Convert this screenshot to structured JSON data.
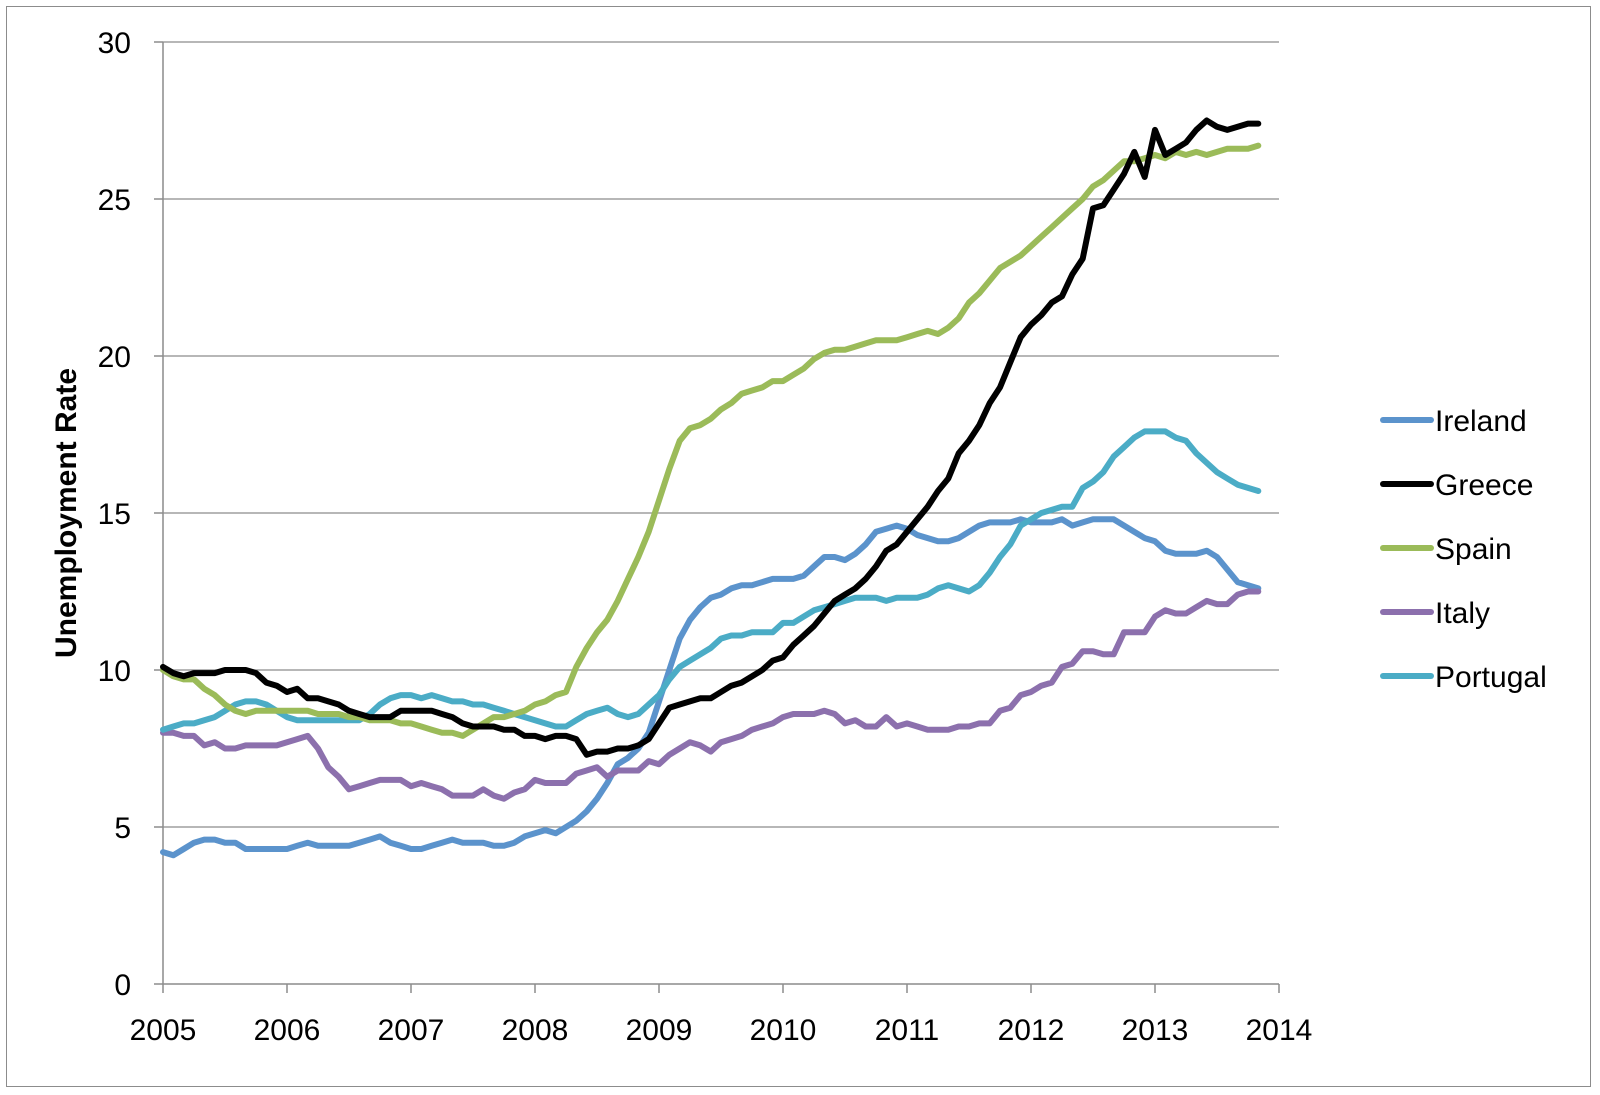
{
  "chart_data": {
    "type": "line",
    "title": "",
    "xlabel": "",
    "ylabel": "Unemployment Rate",
    "xlim": [
      2005,
      2014
    ],
    "ylim": [
      0,
      30
    ],
    "xticks": [
      "2005",
      "2006",
      "2007",
      "2008",
      "2009",
      "2010",
      "2011",
      "2012",
      "2013",
      "2014"
    ],
    "yticks": [
      "0",
      "5",
      "10",
      "15",
      "20",
      "25",
      "30"
    ],
    "grid": "horizontal",
    "legend_position": "right",
    "series": [
      {
        "name": "Ireland",
        "color": "#5b93cc",
        "x": [
          2005.0,
          2005.083,
          2005.167,
          2005.25,
          2005.333,
          2005.417,
          2005.5,
          2005.583,
          2005.667,
          2005.75,
          2005.833,
          2005.917,
          2006.0,
          2006.083,
          2006.167,
          2006.25,
          2006.333,
          2006.417,
          2006.5,
          2006.583,
          2006.667,
          2006.75,
          2006.833,
          2006.917,
          2007.0,
          2007.083,
          2007.167,
          2007.25,
          2007.333,
          2007.417,
          2007.5,
          2007.583,
          2007.667,
          2007.75,
          2007.833,
          2007.917,
          2008.0,
          2008.083,
          2008.167,
          2008.25,
          2008.333,
          2008.417,
          2008.5,
          2008.583,
          2008.667,
          2008.75,
          2008.833,
          2008.917,
          2009.0,
          2009.083,
          2009.167,
          2009.25,
          2009.333,
          2009.417,
          2009.5,
          2009.583,
          2009.667,
          2009.75,
          2009.833,
          2009.917,
          2010.0,
          2010.083,
          2010.167,
          2010.25,
          2010.333,
          2010.417,
          2010.5,
          2010.583,
          2010.667,
          2010.75,
          2010.833,
          2010.917,
          2011.0,
          2011.083,
          2011.167,
          2011.25,
          2011.333,
          2011.417,
          2011.5,
          2011.583,
          2011.667,
          2011.75,
          2011.833,
          2011.917,
          2012.0,
          2012.083,
          2012.167,
          2012.25,
          2012.333,
          2012.417,
          2012.5,
          2012.583,
          2012.667,
          2012.75,
          2012.833,
          2012.917,
          2013.0,
          2013.083,
          2013.167,
          2013.25,
          2013.333,
          2013.417,
          2013.5,
          2013.583,
          2013.667,
          2013.75,
          2013.833
        ],
        "y": [
          4.2,
          4.1,
          4.3,
          4.5,
          4.6,
          4.6,
          4.5,
          4.5,
          4.3,
          4.3,
          4.3,
          4.3,
          4.3,
          4.4,
          4.5,
          4.4,
          4.4,
          4.4,
          4.4,
          4.5,
          4.6,
          4.7,
          4.5,
          4.4,
          4.3,
          4.3,
          4.4,
          4.5,
          4.6,
          4.5,
          4.5,
          4.5,
          4.4,
          4.4,
          4.5,
          4.7,
          4.8,
          4.9,
          4.8,
          5.0,
          5.2,
          5.5,
          5.9,
          6.4,
          7.0,
          7.2,
          7.5,
          8.0,
          9.0,
          10.0,
          11.0,
          11.6,
          12.0,
          12.3,
          12.4,
          12.6,
          12.7,
          12.7,
          12.8,
          12.9,
          12.9,
          12.9,
          13.0,
          13.3,
          13.6,
          13.6,
          13.5,
          13.7,
          14.0,
          14.4,
          14.5,
          14.6,
          14.5,
          14.3,
          14.2,
          14.1,
          14.1,
          14.2,
          14.4,
          14.6,
          14.7,
          14.7,
          14.7,
          14.8,
          14.7,
          14.7,
          14.7,
          14.8,
          14.6,
          14.7,
          14.8,
          14.8,
          14.8,
          14.6,
          14.4,
          14.2,
          14.1,
          13.8,
          13.7,
          13.7,
          13.7,
          13.8,
          13.6,
          13.2,
          12.8,
          12.7,
          12.6
        ]
      },
      {
        "name": "Greece",
        "color": "#000000",
        "x": [
          2005.0,
          2005.083,
          2005.167,
          2005.25,
          2005.333,
          2005.417,
          2005.5,
          2005.583,
          2005.667,
          2005.75,
          2005.833,
          2005.917,
          2006.0,
          2006.083,
          2006.167,
          2006.25,
          2006.333,
          2006.417,
          2006.5,
          2006.583,
          2006.667,
          2006.75,
          2006.833,
          2006.917,
          2007.0,
          2007.083,
          2007.167,
          2007.25,
          2007.333,
          2007.417,
          2007.5,
          2007.583,
          2007.667,
          2007.75,
          2007.833,
          2007.917,
          2008.0,
          2008.083,
          2008.167,
          2008.25,
          2008.333,
          2008.417,
          2008.5,
          2008.583,
          2008.667,
          2008.75,
          2008.833,
          2008.917,
          2009.0,
          2009.083,
          2009.167,
          2009.25,
          2009.333,
          2009.417,
          2009.5,
          2009.583,
          2009.667,
          2009.75,
          2009.833,
          2009.917,
          2010.0,
          2010.083,
          2010.167,
          2010.25,
          2010.333,
          2010.417,
          2010.5,
          2010.583,
          2010.667,
          2010.75,
          2010.833,
          2010.917,
          2011.0,
          2011.083,
          2011.167,
          2011.25,
          2011.333,
          2011.417,
          2011.5,
          2011.583,
          2011.667,
          2011.75,
          2011.833,
          2011.917,
          2012.0,
          2012.083,
          2012.167,
          2012.25,
          2012.333,
          2012.417,
          2012.5,
          2012.583,
          2012.667,
          2012.75,
          2012.833,
          2012.917,
          2013.0,
          2013.083,
          2013.167,
          2013.25,
          2013.333,
          2013.417,
          2013.5,
          2013.583,
          2013.667,
          2013.75,
          2013.833
        ],
        "y": [
          10.1,
          9.9,
          9.8,
          9.9,
          9.9,
          9.9,
          10.0,
          10.0,
          10.0,
          9.9,
          9.6,
          9.5,
          9.3,
          9.4,
          9.1,
          9.1,
          9.0,
          8.9,
          8.7,
          8.6,
          8.5,
          8.5,
          8.5,
          8.7,
          8.7,
          8.7,
          8.7,
          8.6,
          8.5,
          8.3,
          8.2,
          8.2,
          8.2,
          8.1,
          8.1,
          7.9,
          7.9,
          7.8,
          7.9,
          7.9,
          7.8,
          7.3,
          7.4,
          7.4,
          7.5,
          7.5,
          7.6,
          7.8,
          8.3,
          8.8,
          8.9,
          9.0,
          9.1,
          9.1,
          9.3,
          9.5,
          9.6,
          9.8,
          10.0,
          10.3,
          10.4,
          10.8,
          11.1,
          11.4,
          11.8,
          12.2,
          12.4,
          12.6,
          12.9,
          13.3,
          13.8,
          14.0,
          14.4,
          14.8,
          15.2,
          15.7,
          16.1,
          16.9,
          17.3,
          17.8,
          18.5,
          19.0,
          19.8,
          20.6,
          21.0,
          21.3,
          21.7,
          21.9,
          22.6,
          23.1,
          24.7,
          24.8,
          25.3,
          25.8,
          26.5,
          25.7,
          27.2,
          26.4,
          26.6,
          26.8,
          27.2,
          27.5,
          27.3,
          27.2,
          27.3,
          27.4,
          27.4
        ]
      },
      {
        "name": "Spain",
        "color": "#9bbb59",
        "x": [
          2005.0,
          2005.083,
          2005.167,
          2005.25,
          2005.333,
          2005.417,
          2005.5,
          2005.583,
          2005.667,
          2005.75,
          2005.833,
          2005.917,
          2006.0,
          2006.083,
          2006.167,
          2006.25,
          2006.333,
          2006.417,
          2006.5,
          2006.583,
          2006.667,
          2006.75,
          2006.833,
          2006.917,
          2007.0,
          2007.083,
          2007.167,
          2007.25,
          2007.333,
          2007.417,
          2007.5,
          2007.583,
          2007.667,
          2007.75,
          2007.833,
          2007.917,
          2008.0,
          2008.083,
          2008.167,
          2008.25,
          2008.333,
          2008.417,
          2008.5,
          2008.583,
          2008.667,
          2008.75,
          2008.833,
          2008.917,
          2009.0,
          2009.083,
          2009.167,
          2009.25,
          2009.333,
          2009.417,
          2009.5,
          2009.583,
          2009.667,
          2009.75,
          2009.833,
          2009.917,
          2010.0,
          2010.083,
          2010.167,
          2010.25,
          2010.333,
          2010.417,
          2010.5,
          2010.583,
          2010.667,
          2010.75,
          2010.833,
          2010.917,
          2011.0,
          2011.083,
          2011.167,
          2011.25,
          2011.333,
          2011.417,
          2011.5,
          2011.583,
          2011.667,
          2011.75,
          2011.833,
          2011.917,
          2012.0,
          2012.083,
          2012.167,
          2012.25,
          2012.333,
          2012.417,
          2012.5,
          2012.583,
          2012.667,
          2012.75,
          2012.833,
          2012.917,
          2013.0,
          2013.083,
          2013.167,
          2013.25,
          2013.333,
          2013.417,
          2013.5,
          2013.583,
          2013.667,
          2013.75,
          2013.833
        ],
        "y": [
          10.0,
          9.8,
          9.7,
          9.7,
          9.4,
          9.2,
          8.9,
          8.7,
          8.6,
          8.7,
          8.7,
          8.7,
          8.7,
          8.7,
          8.7,
          8.6,
          8.6,
          8.6,
          8.5,
          8.5,
          8.4,
          8.4,
          8.4,
          8.3,
          8.3,
          8.2,
          8.1,
          8.0,
          8.0,
          7.9,
          8.1,
          8.3,
          8.5,
          8.5,
          8.6,
          8.7,
          8.9,
          9.0,
          9.2,
          9.3,
          10.1,
          10.7,
          11.2,
          11.6,
          12.2,
          12.9,
          13.6,
          14.4,
          15.4,
          16.4,
          17.3,
          17.7,
          17.8,
          18.0,
          18.3,
          18.5,
          18.8,
          18.9,
          19.0,
          19.2,
          19.2,
          19.4,
          19.6,
          19.9,
          20.1,
          20.2,
          20.2,
          20.3,
          20.4,
          20.5,
          20.5,
          20.5,
          20.6,
          20.7,
          20.8,
          20.7,
          20.9,
          21.2,
          21.7,
          22.0,
          22.4,
          22.8,
          23.0,
          23.2,
          23.5,
          23.8,
          24.1,
          24.4,
          24.7,
          25.0,
          25.4,
          25.6,
          25.9,
          26.2,
          26.2,
          26.3,
          26.4,
          26.3,
          26.5,
          26.4,
          26.5,
          26.4,
          26.5,
          26.6,
          26.6,
          26.6,
          26.7
        ]
      },
      {
        "name": "Italy",
        "color": "#8c70ad",
        "x": [
          2005.0,
          2005.083,
          2005.167,
          2005.25,
          2005.333,
          2005.417,
          2005.5,
          2005.583,
          2005.667,
          2005.75,
          2005.833,
          2005.917,
          2006.0,
          2006.083,
          2006.167,
          2006.25,
          2006.333,
          2006.417,
          2006.5,
          2006.583,
          2006.667,
          2006.75,
          2006.833,
          2006.917,
          2007.0,
          2007.083,
          2007.167,
          2007.25,
          2007.333,
          2007.417,
          2007.5,
          2007.583,
          2007.667,
          2007.75,
          2007.833,
          2007.917,
          2008.0,
          2008.083,
          2008.167,
          2008.25,
          2008.333,
          2008.417,
          2008.5,
          2008.583,
          2008.667,
          2008.75,
          2008.833,
          2008.917,
          2009.0,
          2009.083,
          2009.167,
          2009.25,
          2009.333,
          2009.417,
          2009.5,
          2009.583,
          2009.667,
          2009.75,
          2009.833,
          2009.917,
          2010.0,
          2010.083,
          2010.167,
          2010.25,
          2010.333,
          2010.417,
          2010.5,
          2010.583,
          2010.667,
          2010.75,
          2010.833,
          2010.917,
          2011.0,
          2011.083,
          2011.167,
          2011.25,
          2011.333,
          2011.417,
          2011.5,
          2011.583,
          2011.667,
          2011.75,
          2011.833,
          2011.917,
          2012.0,
          2012.083,
          2012.167,
          2012.25,
          2012.333,
          2012.417,
          2012.5,
          2012.583,
          2012.667,
          2012.75,
          2012.833,
          2012.917,
          2013.0,
          2013.083,
          2013.167,
          2013.25,
          2013.333,
          2013.417,
          2013.5,
          2013.583,
          2013.667,
          2013.75,
          2013.833
        ],
        "y": [
          8.0,
          8.0,
          7.9,
          7.9,
          7.6,
          7.7,
          7.5,
          7.5,
          7.6,
          7.6,
          7.6,
          7.6,
          7.7,
          7.8,
          7.9,
          7.5,
          6.9,
          6.6,
          6.2,
          6.3,
          6.4,
          6.5,
          6.5,
          6.5,
          6.3,
          6.4,
          6.3,
          6.2,
          6.0,
          6.0,
          6.0,
          6.2,
          6.0,
          5.9,
          6.1,
          6.2,
          6.5,
          6.4,
          6.4,
          6.4,
          6.7,
          6.8,
          6.9,
          6.6,
          6.8,
          6.8,
          6.8,
          7.1,
          7.0,
          7.3,
          7.5,
          7.7,
          7.6,
          7.4,
          7.7,
          7.8,
          7.9,
          8.1,
          8.2,
          8.3,
          8.5,
          8.6,
          8.6,
          8.6,
          8.7,
          8.6,
          8.3,
          8.4,
          8.2,
          8.2,
          8.5,
          8.2,
          8.3,
          8.2,
          8.1,
          8.1,
          8.1,
          8.2,
          8.2,
          8.3,
          8.3,
          8.7,
          8.8,
          9.2,
          9.3,
          9.5,
          9.6,
          10.1,
          10.2,
          10.6,
          10.6,
          10.5,
          10.5,
          11.2,
          11.2,
          11.2,
          11.7,
          11.9,
          11.8,
          11.8,
          12.0,
          12.2,
          12.1,
          12.1,
          12.4,
          12.5,
          12.5
        ]
      },
      {
        "name": "Portugal",
        "color": "#4bacc6",
        "x": [
          2005.0,
          2005.083,
          2005.167,
          2005.25,
          2005.333,
          2005.417,
          2005.5,
          2005.583,
          2005.667,
          2005.75,
          2005.833,
          2005.917,
          2006.0,
          2006.083,
          2006.167,
          2006.25,
          2006.333,
          2006.417,
          2006.5,
          2006.583,
          2006.667,
          2006.75,
          2006.833,
          2006.917,
          2007.0,
          2007.083,
          2007.167,
          2007.25,
          2007.333,
          2007.417,
          2007.5,
          2007.583,
          2007.667,
          2007.75,
          2007.833,
          2007.917,
          2008.0,
          2008.083,
          2008.167,
          2008.25,
          2008.333,
          2008.417,
          2008.5,
          2008.583,
          2008.667,
          2008.75,
          2008.833,
          2008.917,
          2009.0,
          2009.083,
          2009.167,
          2009.25,
          2009.333,
          2009.417,
          2009.5,
          2009.583,
          2009.667,
          2009.75,
          2009.833,
          2009.917,
          2010.0,
          2010.083,
          2010.167,
          2010.25,
          2010.333,
          2010.417,
          2010.5,
          2010.583,
          2010.667,
          2010.75,
          2010.833,
          2010.917,
          2011.0,
          2011.083,
          2011.167,
          2011.25,
          2011.333,
          2011.417,
          2011.5,
          2011.583,
          2011.667,
          2011.75,
          2011.833,
          2011.917,
          2012.0,
          2012.083,
          2012.167,
          2012.25,
          2012.333,
          2012.417,
          2012.5,
          2012.583,
          2012.667,
          2012.75,
          2012.833,
          2012.917,
          2013.0,
          2013.083,
          2013.167,
          2013.25,
          2013.333,
          2013.417,
          2013.5,
          2013.583,
          2013.667,
          2013.75,
          2013.833
        ],
        "y": [
          8.1,
          8.2,
          8.3,
          8.3,
          8.4,
          8.5,
          8.7,
          8.9,
          9.0,
          9.0,
          8.9,
          8.7,
          8.5,
          8.4,
          8.4,
          8.4,
          8.4,
          8.4,
          8.4,
          8.4,
          8.6,
          8.9,
          9.1,
          9.2,
          9.2,
          9.1,
          9.2,
          9.1,
          9.0,
          9.0,
          8.9,
          8.9,
          8.8,
          8.7,
          8.6,
          8.5,
          8.4,
          8.3,
          8.2,
          8.2,
          8.4,
          8.6,
          8.7,
          8.8,
          8.6,
          8.5,
          8.6,
          8.9,
          9.2,
          9.7,
          10.1,
          10.3,
          10.5,
          10.7,
          11.0,
          11.1,
          11.1,
          11.2,
          11.2,
          11.2,
          11.5,
          11.5,
          11.7,
          11.9,
          12.0,
          12.1,
          12.2,
          12.3,
          12.3,
          12.3,
          12.2,
          12.3,
          12.3,
          12.3,
          12.4,
          12.6,
          12.7,
          12.6,
          12.5,
          12.7,
          13.1,
          13.6,
          14.0,
          14.6,
          14.8,
          15.0,
          15.1,
          15.2,
          15.2,
          15.8,
          16.0,
          16.3,
          16.8,
          17.1,
          17.4,
          17.6,
          17.6,
          17.6,
          17.4,
          17.3,
          16.9,
          16.6,
          16.3,
          16.1,
          15.9,
          15.8,
          15.7
        ]
      }
    ]
  }
}
